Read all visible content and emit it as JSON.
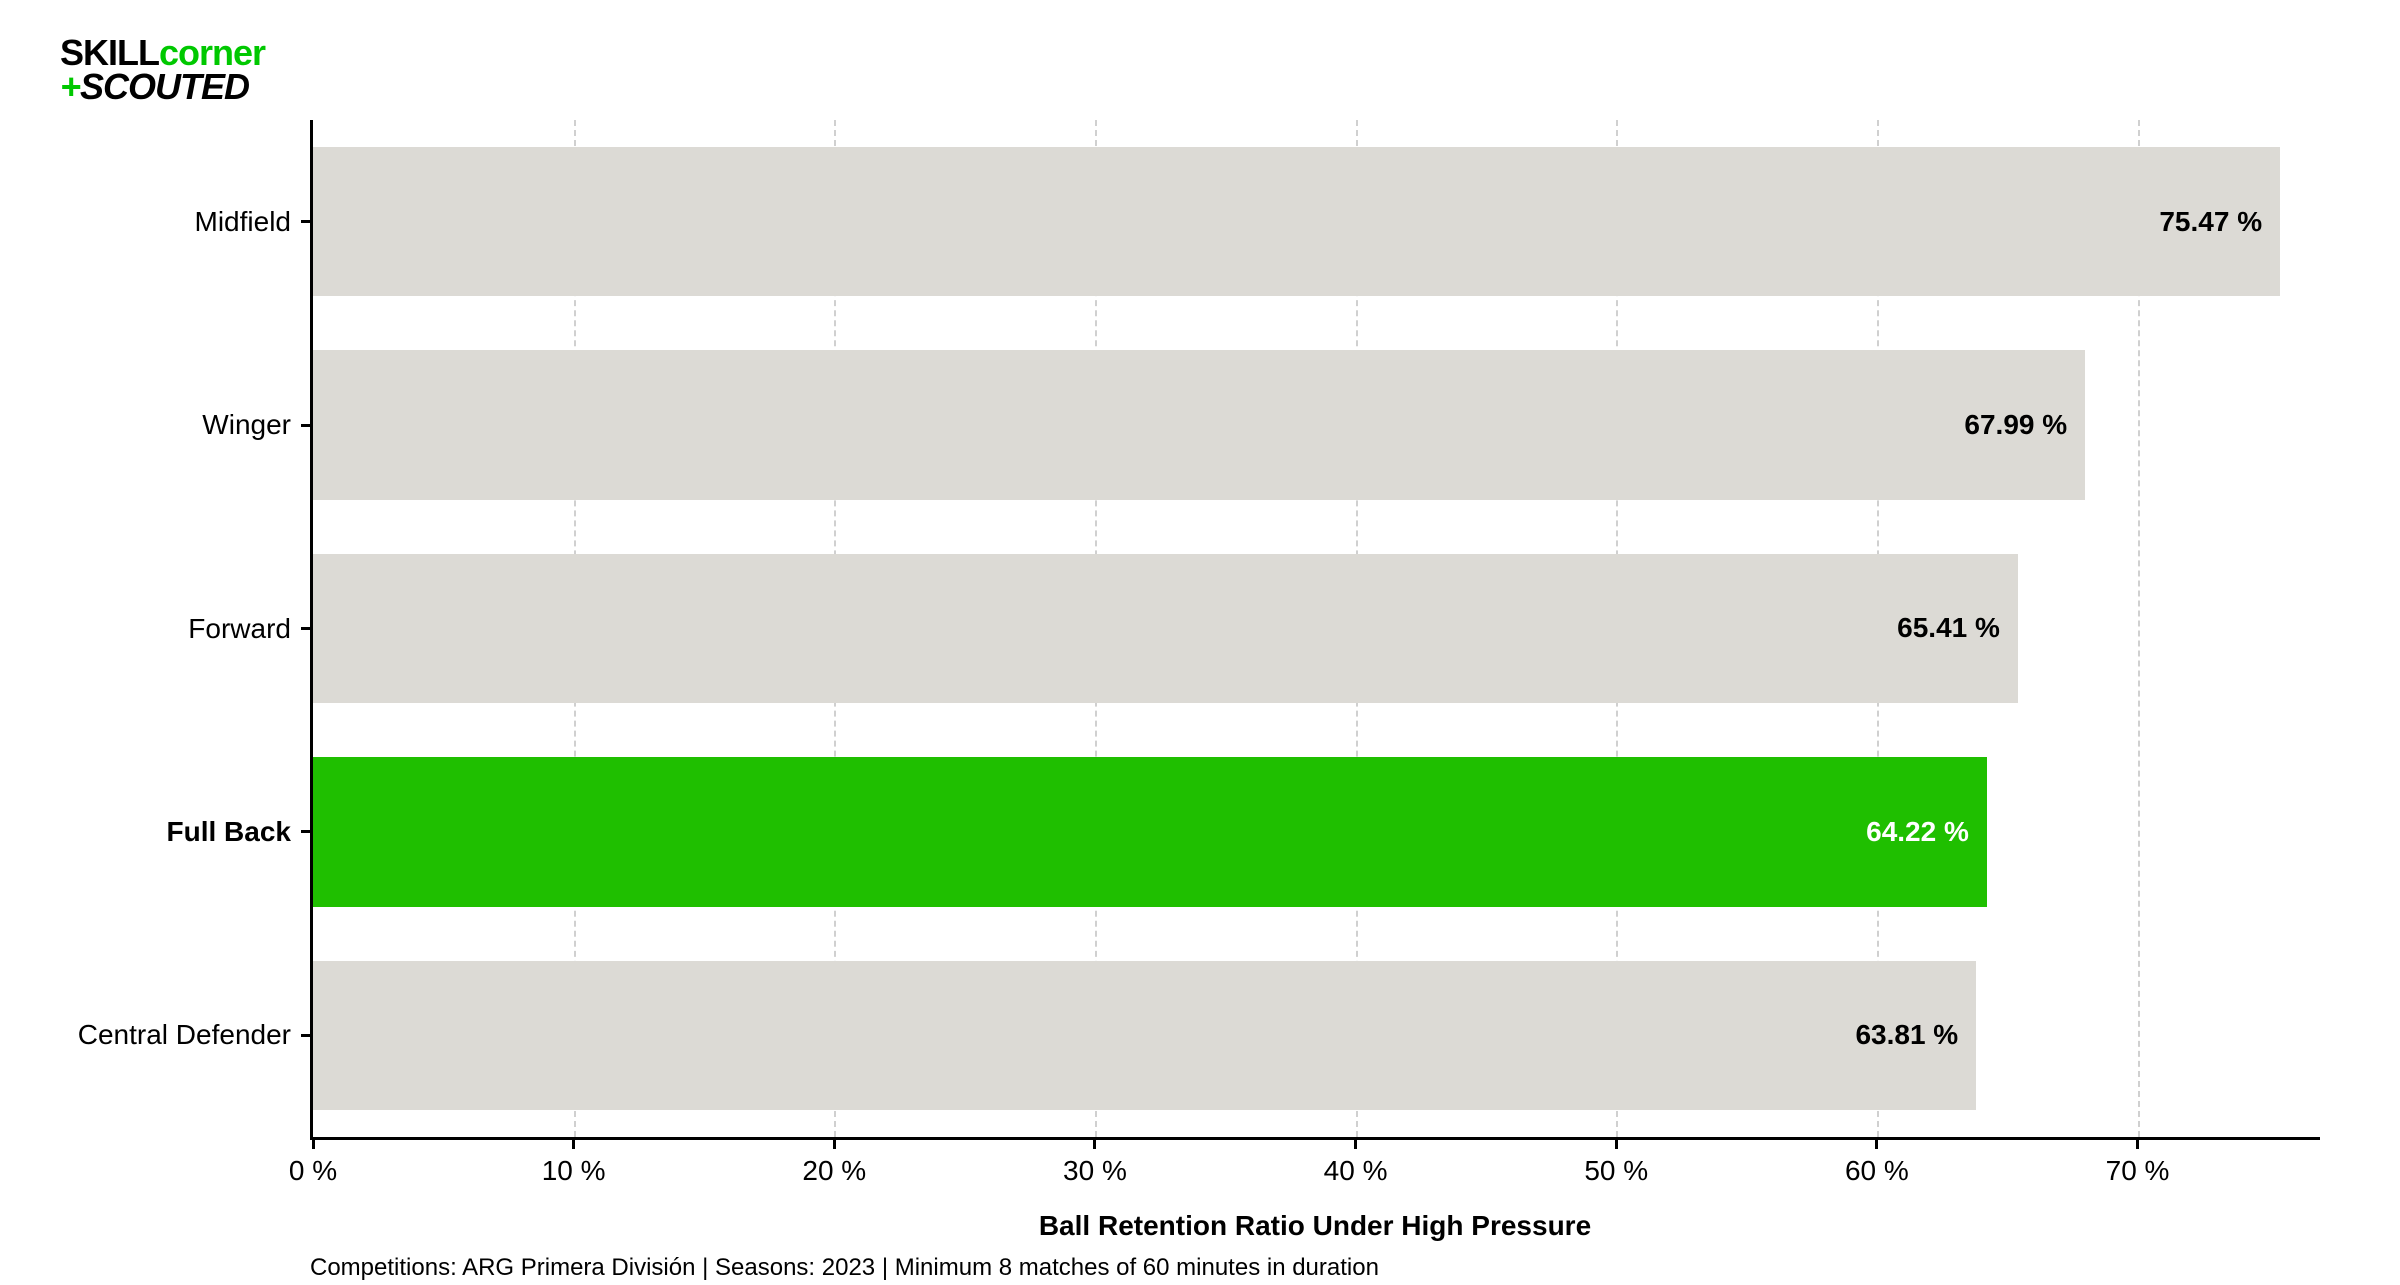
{
  "logo": {
    "skill": "SKILL",
    "corner": "corner",
    "plus": "+",
    "scouted": "SCOUTED"
  },
  "chart": {
    "type": "bar-horizontal",
    "x_axis_title": "Ball Retention Ratio Under High Pressure",
    "footnote": "Competitions: ARG Primera División | Seasons: 2023 | Minimum 8 matches of 60 minutes in duration",
    "xlim": [
      0,
      77
    ],
    "x_ticks": [
      0,
      10,
      20,
      30,
      40,
      50,
      60,
      70
    ],
    "x_tick_labels": [
      "0 %",
      "10 %",
      "20 %",
      "30 %",
      "40 %",
      "50 %",
      "60 %",
      "70 %"
    ],
    "grid_color": "#d0d0d0",
    "axis_color": "#000000",
    "background_color": "#ffffff",
    "default_bar_color": "#dcdad5",
    "highlight_bar_color": "#1fbf00",
    "default_label_color": "#000000",
    "highlight_label_color": "#ffffff",
    "bar_height_pct": 14.7,
    "label_fontsize": 28,
    "tick_fontsize": 28,
    "title_fontsize": 28,
    "bars": [
      {
        "category": "Midfield",
        "value": 75.47,
        "value_label": "75.47 %",
        "highlighted": false,
        "bold": false
      },
      {
        "category": "Winger",
        "value": 67.99,
        "value_label": "67.99 %",
        "highlighted": false,
        "bold": false
      },
      {
        "category": "Forward",
        "value": 65.41,
        "value_label": "65.41 %",
        "highlighted": false,
        "bold": false
      },
      {
        "category": "Full Back",
        "value": 64.22,
        "value_label": "64.22 %",
        "highlighted": true,
        "bold": true
      },
      {
        "category": "Central Defender",
        "value": 63.81,
        "value_label": "63.81 %",
        "highlighted": false,
        "bold": false
      }
    ]
  }
}
